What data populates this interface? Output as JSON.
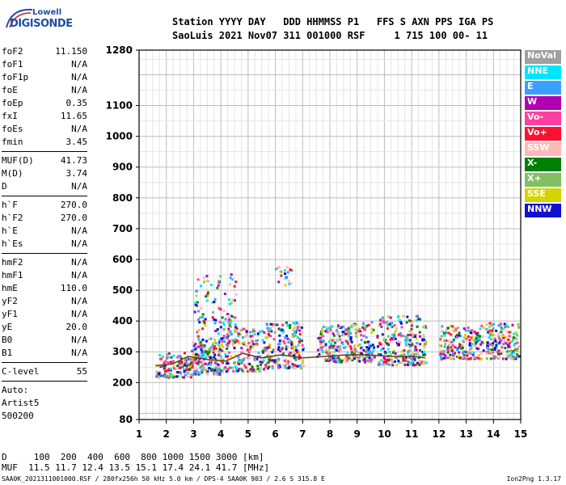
{
  "logo": {
    "line1": "Lowell",
    "line2": "DIGISONDE"
  },
  "header": {
    "labels": "Station YYYY DAY   DDD HHMMSS P1   FFS S AXN PPS IGA PS",
    "values": "SaoLuis 2021 Nov07 311 001000 RSF     1 715 100 00- 11"
  },
  "params_group1": [
    {
      "key": "foF2",
      "value": "11.150"
    },
    {
      "key": "foF1",
      "value": "N/A"
    },
    {
      "key": "foF1p",
      "value": "N/A"
    },
    {
      "key": "foE",
      "value": "N/A"
    },
    {
      "key": "foEp",
      "value": "0.35"
    },
    {
      "key": "fxI",
      "value": "11.65"
    },
    {
      "key": "foEs",
      "value": "N/A"
    },
    {
      "key": "fmin",
      "value": "3.45"
    }
  ],
  "params_group2": [
    {
      "key": "MUF(D)",
      "value": "41.73"
    },
    {
      "key": "M(D)",
      "value": "3.74"
    },
    {
      "key": "D",
      "value": "N/A"
    }
  ],
  "params_group3": [
    {
      "key": "h`F",
      "value": "270.0"
    },
    {
      "key": "h`F2",
      "value": "270.0"
    },
    {
      "key": "h`E",
      "value": "N/A"
    },
    {
      "key": "h`Es",
      "value": "N/A"
    }
  ],
  "params_group4": [
    {
      "key": "hmF2",
      "value": "N/A"
    },
    {
      "key": "hmF1",
      "value": "N/A"
    },
    {
      "key": "hmE",
      "value": "110.0"
    },
    {
      "key": "yF2",
      "value": "N/A"
    },
    {
      "key": "yF1",
      "value": "N/A"
    },
    {
      "key": "yE",
      "value": "20.0"
    },
    {
      "key": "B0",
      "value": "N/A"
    },
    {
      "key": "B1",
      "value": "N/A"
    }
  ],
  "params_group5": [
    {
      "key": "C-level",
      "value": "55"
    }
  ],
  "autoscale": {
    "line1": "Auto:",
    "line2": "Artist5",
    "line3": "500200"
  },
  "legend": [
    {
      "label": "NoVal",
      "color": "#a0a0a0"
    },
    {
      "label": "NNE",
      "color": "#00e5ff"
    },
    {
      "label": "E",
      "color": "#3aa0ff"
    },
    {
      "label": "W",
      "color": "#b000b0"
    },
    {
      "label": "Vo-",
      "color": "#ff3fa0"
    },
    {
      "label": "Vo+",
      "color": "#ff1030"
    },
    {
      "label": "SSW",
      "color": "#ffb8b8"
    },
    {
      "label": "X-",
      "color": "#008000"
    },
    {
      "label": "X+",
      "color": "#80c060"
    },
    {
      "label": "SSE",
      "color": "#d4d400"
    },
    {
      "label": "NNW",
      "color": "#1010d0"
    }
  ],
  "bottom": {
    "d_line": "D     100  200  400  600  800 1000 1500 3000 [km]",
    "muf_line": "MUF  11.5 11.7 12.4 13.5 15.1 17.4 24.1 41.7 [MHz]"
  },
  "footer": "SAA0K_2021311001000.RSF / 280fx256h 50 kHz 5.0 km / DPS-4 SAA0K 903 / 2.6 S 315.8 E",
  "version": "Ion2Png 1.3.17",
  "chart_data": {
    "type": "scatter",
    "xlim": [
      1,
      15
    ],
    "ylim": [
      80,
      1280
    ],
    "x_ticks": [
      1,
      2,
      3,
      4,
      5,
      6,
      7,
      8,
      9,
      10,
      11,
      12,
      13,
      14,
      15
    ],
    "y_ticks": [
      80,
      200,
      300,
      400,
      500,
      600,
      700,
      800,
      900,
      1000,
      1100,
      1280
    ],
    "grid": true,
    "clusters": [
      {
        "x0": 1.6,
        "x1": 2.9,
        "y0": 220,
        "y1": 300,
        "n": 140
      },
      {
        "x0": 2.9,
        "x1": 4.0,
        "y0": 230,
        "y1": 340,
        "n": 180
      },
      {
        "x0": 3.0,
        "x1": 4.6,
        "y0": 340,
        "y1": 560,
        "n": 110
      },
      {
        "x0": 4.0,
        "x1": 5.6,
        "y0": 240,
        "y1": 380,
        "n": 180
      },
      {
        "x0": 5.6,
        "x1": 7.0,
        "y0": 250,
        "y1": 400,
        "n": 200
      },
      {
        "x0": 5.9,
        "x1": 6.6,
        "y0": 520,
        "y1": 580,
        "n": 20
      },
      {
        "x0": 7.5,
        "x1": 8.7,
        "y0": 270,
        "y1": 390,
        "n": 150
      },
      {
        "x0": 8.7,
        "x1": 9.6,
        "y0": 270,
        "y1": 400,
        "n": 120
      },
      {
        "x0": 9.7,
        "x1": 11.5,
        "y0": 260,
        "y1": 420,
        "n": 240
      },
      {
        "x0": 12.0,
        "x1": 13.6,
        "y0": 280,
        "y1": 390,
        "n": 180
      },
      {
        "x0": 13.7,
        "x1": 14.9,
        "y0": 280,
        "y1": 400,
        "n": 170
      }
    ],
    "trace": {
      "x": [
        1.6,
        2.2,
        2.8,
        3.5,
        4.2,
        4.8,
        5.5,
        6.2,
        7.0,
        7.8,
        8.6,
        9.4,
        10.2,
        11.0,
        11.5
      ],
      "y": [
        255,
        260,
        285,
        275,
        270,
        295,
        280,
        290,
        280,
        285,
        290,
        290,
        285,
        285,
        280
      ]
    }
  }
}
